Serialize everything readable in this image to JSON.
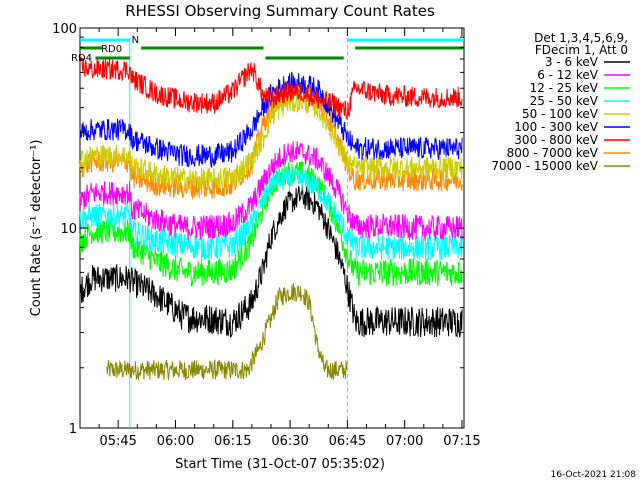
{
  "chart_data": {
    "type": "line",
    "title": "RHESSI Observing Summary Count Rates",
    "xlabel": "Start Time (31-Oct-07 05:35:02)",
    "ylabel": "Count Rate (s⁻¹ detector⁻¹)",
    "y_scale": "log",
    "ylim": [
      1,
      100
    ],
    "xlim_minutes": [
      -0.03,
      100.5
    ],
    "x_ticks": [
      "05:45",
      "06:00",
      "06:15",
      "06:30",
      "06:45",
      "07:00",
      "07:15"
    ],
    "y_ticks": [
      "1",
      "10",
      "100"
    ],
    "legend_header": [
      "Det 1,3,4,5,6,9,",
      "FDecim 1, Att 0"
    ],
    "legend_placement": "right",
    "timestamp": "16-Oct-2021 21:08",
    "flag_labels": {
      "rd0": "RD0",
      "rd4": "RD4",
      "n": "N"
    },
    "night_intervals": [
      [
        -0.03,
        13.0
      ],
      [
        70.0,
        100.5
      ]
    ],
    "series": [
      {
        "name": "3 - 6 keV",
        "color": "#000000",
        "x": [
          0,
          3,
          3.5,
          13,
          13.5,
          20,
          27,
          35,
          40,
          45,
          48,
          50,
          54,
          58,
          62,
          66,
          70,
          72,
          80,
          90,
          100
        ],
        "y": [
          4.8,
          5.6,
          5.6,
          5.6,
          5.4,
          4.6,
          3.6,
          3.5,
          3.4,
          4.2,
          6.2,
          9.0,
          13.0,
          14.5,
          13.0,
          8.8,
          5.0,
          3.4,
          3.4,
          3.4,
          3.4
        ]
      },
      {
        "name": "6 - 12 keV",
        "color": "#ff00ff",
        "x": [
          0,
          3,
          3.5,
          13,
          13.5,
          20,
          27,
          35,
          40,
          45,
          48,
          50,
          54,
          58,
          62,
          66,
          70,
          72,
          80,
          90,
          100
        ],
        "y": [
          13.5,
          15.0,
          15.0,
          15.0,
          12.5,
          11.0,
          10.0,
          10.2,
          10.5,
          13.0,
          17.0,
          20.0,
          24.0,
          24.0,
          22.0,
          17.0,
          12.0,
          10.2,
          10.2,
          10.0,
          10.0
        ]
      },
      {
        "name": "12 - 25 keV",
        "color": "#00ff00",
        "x": [
          0,
          3,
          3.5,
          13,
          13.5,
          20,
          27,
          35,
          40,
          45,
          48,
          50,
          54,
          58,
          62,
          66,
          70,
          72,
          80,
          90,
          100
        ],
        "y": [
          8.6,
          9.6,
          9.6,
          9.6,
          8.2,
          6.8,
          6.0,
          6.0,
          6.2,
          8.6,
          12.5,
          16.0,
          19.0,
          19.0,
          17.0,
          12.0,
          7.2,
          6.0,
          6.0,
          6.0,
          6.0
        ]
      },
      {
        "name": "25 - 50 keV",
        "color": "#00ffff",
        "x": [
          0,
          3,
          3.5,
          13,
          13.5,
          20,
          27,
          35,
          40,
          45,
          48,
          50,
          54,
          58,
          62,
          66,
          70,
          72,
          80,
          90,
          100
        ],
        "y": [
          11.0,
          11.5,
          11.5,
          11.5,
          9.6,
          8.6,
          8.2,
          8.0,
          8.2,
          10.5,
          14.0,
          17.0,
          17.5,
          17.5,
          16.0,
          12.5,
          9.0,
          8.0,
          8.0,
          8.0,
          8.0
        ]
      },
      {
        "name": "50 - 100 keV",
        "color": "#cccc00",
        "x": [
          0,
          3,
          3.5,
          13,
          13.5,
          20,
          27,
          35,
          40,
          45,
          48,
          50,
          54,
          58,
          62,
          66,
          70,
          72,
          80,
          90,
          100
        ],
        "y": [
          22.0,
          23.0,
          23.0,
          23.0,
          20.5,
          18.5,
          17.5,
          17.5,
          18.0,
          22.0,
          28.0,
          36.0,
          42.0,
          43.0,
          40.0,
          30.0,
          21.0,
          20.0,
          20.0,
          20.0,
          20.0
        ]
      },
      {
        "name": "100 - 300 keV",
        "color": "#0000ff",
        "x": [
          0,
          3,
          3.5,
          13,
          13.5,
          20,
          27,
          35,
          40,
          45,
          48,
          50,
          54,
          58,
          62,
          66,
          70,
          72,
          80,
          90,
          100
        ],
        "y": [
          30.0,
          31.0,
          31.0,
          31.0,
          28.0,
          25.0,
          23.0,
          23.0,
          24.0,
          31.0,
          40.0,
          47.0,
          53.0,
          53.0,
          50.0,
          38.0,
          28.0,
          25.0,
          25.0,
          25.0,
          25.0
        ]
      },
      {
        "name": "300 - 800 keV",
        "color": "#ff0000",
        "x": [
          0,
          3,
          3.5,
          13,
          13.5,
          20,
          27,
          35,
          40,
          45,
          48,
          50,
          54,
          58,
          62,
          66,
          70,
          72,
          80,
          90,
          100
        ],
        "y": [
          64.0,
          62.0,
          62.0,
          62.0,
          56.0,
          47.0,
          43.0,
          42.0,
          48.0,
          63.0,
          45.0,
          44.0,
          48.0,
          48.0,
          44.0,
          42.0,
          38.0,
          50.0,
          46.0,
          45.0,
          45.0
        ]
      },
      {
        "name": "800 - 7000 keV",
        "color": "#ff8800",
        "x": [
          0,
          3,
          3.5,
          13,
          13.5,
          20,
          27,
          35,
          40,
          45,
          48,
          50,
          54,
          58,
          62,
          66,
          70,
          72,
          80,
          90,
          100
        ],
        "y": [
          20.0,
          21.5,
          21.5,
          21.5,
          18.0,
          16.5,
          16.0,
          16.0,
          16.5,
          21.0,
          33.0,
          40.0,
          47.0,
          48.0,
          45.0,
          32.0,
          20.0,
          17.5,
          17.5,
          17.5,
          17.5
        ]
      },
      {
        "name": "7000 - 15000 keV",
        "color": "#888800",
        "x": [
          7,
          14,
          16,
          22,
          28,
          35,
          38,
          40,
          42,
          44,
          47,
          50,
          52,
          55,
          58,
          60,
          62,
          64,
          66,
          68,
          70
        ],
        "y": [
          1.95,
          1.95,
          1.95,
          1.95,
          1.95,
          1.95,
          1.95,
          1.95,
          1.95,
          1.95,
          2.5,
          3.5,
          4.5,
          4.8,
          4.8,
          4.2,
          2.6,
          1.95,
          1.95,
          1.95,
          1.95
        ]
      }
    ]
  }
}
